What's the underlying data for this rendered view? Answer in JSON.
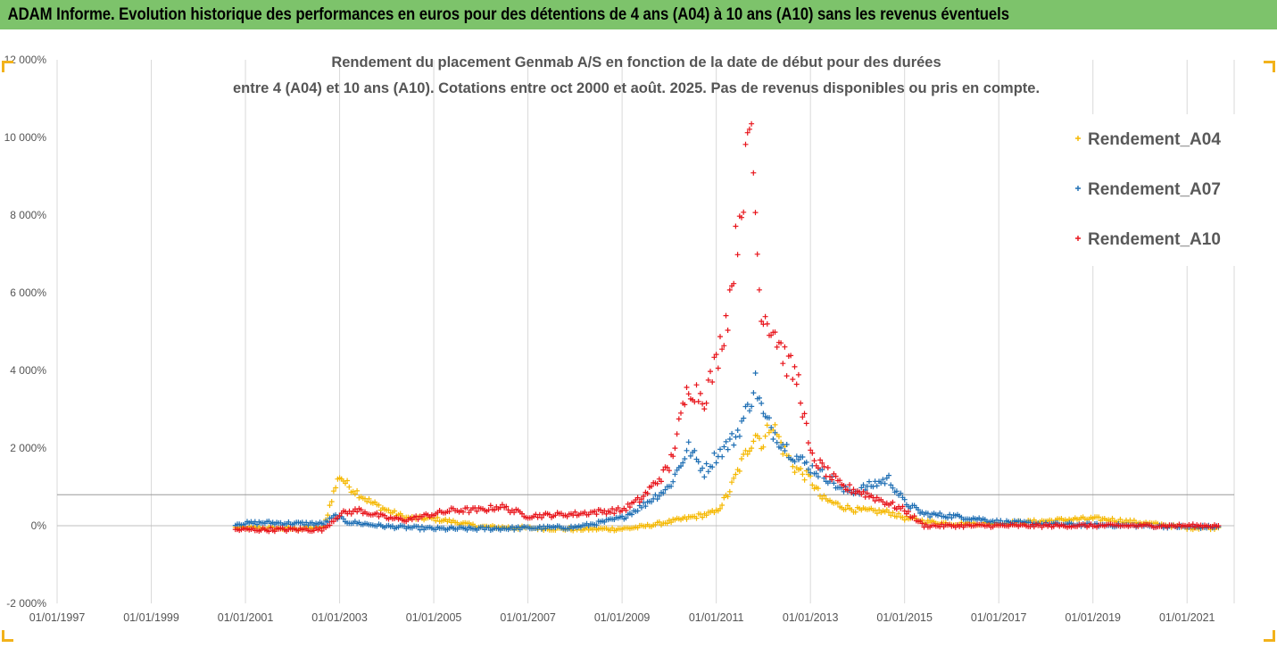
{
  "banner": {
    "text": "ADAM Informe. Evolution historique des performances en euros pour des détentions de 4 ans (A04) à 10 ans (A10) sans les revenus éventuels",
    "color": "#7dc36b"
  },
  "chart_data": {
    "type": "scatter",
    "title_lines": [
      "Rendement du placement Genmab A/S en fonction de la date de début pour des durées",
      "entre 4 (A04) et 10 ans (A10). Cotations entre oct 2000 et août. 2025. Pas de revenus disponibles ou pris en compte."
    ],
    "xlabel": "",
    "ylabel": "",
    "x_ticks": [
      "01/01/1997",
      "01/01/1999",
      "01/01/2001",
      "01/01/2003",
      "01/01/2005",
      "01/01/2007",
      "01/01/2009",
      "01/01/2011",
      "01/01/2013",
      "01/01/2015",
      "01/01/2017",
      "01/01/2019",
      "01/01/2021"
    ],
    "xlim": [
      "1997-01-01",
      "2022-01-01"
    ],
    "y_ticks": [
      "-2 000%",
      "0%",
      "2 000%",
      "4 000%",
      "6 000%",
      "8 000%",
      "10 000%",
      "12 000%"
    ],
    "ylim": [
      -2000,
      12000
    ],
    "reference_line": 800,
    "grid": "vertical",
    "legend_position": "top-right",
    "marker": "+",
    "series": [
      {
        "name": "Rendement_A04",
        "color": "#f5b800",
        "points": [
          [
            "2000-10-15",
            -50
          ],
          [
            "2001-06-01",
            -60
          ],
          [
            "2002-01-01",
            -80
          ],
          [
            "2002-09-01",
            -50
          ],
          [
            "2002-11-01",
            700
          ],
          [
            "2003-01-01",
            1300
          ],
          [
            "2003-03-01",
            1050
          ],
          [
            "2003-05-01",
            900
          ],
          [
            "2003-09-01",
            600
          ],
          [
            "2004-01-01",
            400
          ],
          [
            "2004-06-01",
            200
          ],
          [
            "2005-01-01",
            180
          ],
          [
            "2005-06-01",
            100
          ],
          [
            "2006-01-01",
            -30
          ],
          [
            "2007-01-01",
            -60
          ],
          [
            "2008-01-01",
            -90
          ],
          [
            "2009-01-01",
            -80
          ],
          [
            "2009-06-01",
            -30
          ],
          [
            "2010-01-01",
            100
          ],
          [
            "2010-06-01",
            200
          ],
          [
            "2011-01-01",
            350
          ],
          [
            "2011-04-01",
            800
          ],
          [
            "2011-07-01",
            1500
          ],
          [
            "2011-11-01",
            2400
          ],
          [
            "2012-01-01",
            2100
          ],
          [
            "2012-03-01",
            2700
          ],
          [
            "2012-06-01",
            2000
          ],
          [
            "2012-09-01",
            1500
          ],
          [
            "2013-01-01",
            1200
          ],
          [
            "2013-04-01",
            700
          ],
          [
            "2013-09-01",
            500
          ],
          [
            "2014-01-01",
            400
          ],
          [
            "2014-09-01",
            350
          ],
          [
            "2015-01-01",
            200
          ],
          [
            "2015-07-01",
            100
          ],
          [
            "2016-01-01",
            50
          ],
          [
            "2017-01-01",
            60
          ],
          [
            "2018-01-01",
            120
          ],
          [
            "2018-07-01",
            160
          ],
          [
            "2019-01-01",
            180
          ],
          [
            "2019-06-01",
            150
          ],
          [
            "2020-01-01",
            80
          ],
          [
            "2021-01-01",
            -50
          ],
          [
            "2021-09-01",
            -50
          ]
        ]
      },
      {
        "name": "Rendement_A07",
        "color": "#1f6fb4",
        "points": [
          [
            "2000-10-15",
            50
          ],
          [
            "2001-06-01",
            80
          ],
          [
            "2002-01-01",
            60
          ],
          [
            "2002-09-01",
            50
          ],
          [
            "2002-12-01",
            250
          ],
          [
            "2003-03-01",
            100
          ],
          [
            "2004-01-01",
            -20
          ],
          [
            "2005-01-01",
            -80
          ],
          [
            "2006-01-01",
            -80
          ],
          [
            "2007-01-01",
            -60
          ],
          [
            "2008-01-01",
            -40
          ],
          [
            "2008-06-01",
            50
          ],
          [
            "2009-01-01",
            200
          ],
          [
            "2009-06-01",
            500
          ],
          [
            "2010-01-01",
            1000
          ],
          [
            "2010-06-01",
            2000
          ],
          [
            "2010-10-01",
            1400
          ],
          [
            "2011-01-01",
            1800
          ],
          [
            "2011-06-01",
            2300
          ],
          [
            "2011-09-01",
            3000
          ],
          [
            "2011-11-01",
            3700
          ],
          [
            "2012-01-01",
            2800
          ],
          [
            "2012-06-01",
            2100
          ],
          [
            "2012-09-01",
            1800
          ],
          [
            "2013-01-01",
            1500
          ],
          [
            "2013-06-01",
            1200
          ],
          [
            "2013-09-01",
            900
          ],
          [
            "2014-01-01",
            900
          ],
          [
            "2014-06-01",
            1100
          ],
          [
            "2014-09-01",
            1200
          ],
          [
            "2015-01-01",
            600
          ],
          [
            "2015-06-01",
            300
          ],
          [
            "2016-01-01",
            250
          ],
          [
            "2016-06-01",
            200
          ],
          [
            "2017-01-01",
            100
          ],
          [
            "2018-01-01",
            40
          ],
          [
            "2019-01-01",
            20
          ],
          [
            "2020-01-01",
            0
          ],
          [
            "2021-01-01",
            -30
          ],
          [
            "2021-09-01",
            -30
          ]
        ]
      },
      {
        "name": "Rendement_A10",
        "color": "#e8141b",
        "points": [
          [
            "2000-10-15",
            -100
          ],
          [
            "2001-06-01",
            -100
          ],
          [
            "2002-06-01",
            -100
          ],
          [
            "2002-09-01",
            -90
          ],
          [
            "2003-01-01",
            300
          ],
          [
            "2003-06-01",
            400
          ],
          [
            "2004-01-01",
            200
          ],
          [
            "2004-06-01",
            150
          ],
          [
            "2005-01-01",
            300
          ],
          [
            "2005-06-01",
            400
          ],
          [
            "2006-01-01",
            400
          ],
          [
            "2006-06-01",
            500
          ],
          [
            "2007-01-01",
            250
          ],
          [
            "2008-01-01",
            300
          ],
          [
            "2008-06-01",
            350
          ],
          [
            "2009-01-01",
            400
          ],
          [
            "2009-06-01",
            700
          ],
          [
            "2010-01-01",
            1500
          ],
          [
            "2010-06-01",
            3600
          ],
          [
            "2010-10-01",
            3300
          ],
          [
            "2011-01-01",
            4200
          ],
          [
            "2011-04-01",
            5500
          ],
          [
            "2011-07-01",
            8000
          ],
          [
            "2011-10-01",
            10300
          ],
          [
            "2011-12-01",
            6000
          ],
          [
            "2012-01-01",
            5500
          ],
          [
            "2012-04-01",
            5000
          ],
          [
            "2012-07-01",
            4200
          ],
          [
            "2012-10-01",
            3700
          ],
          [
            "2013-01-01",
            1800
          ],
          [
            "2013-06-01",
            1300
          ],
          [
            "2013-09-01",
            1000
          ],
          [
            "2014-01-01",
            900
          ],
          [
            "2014-06-01",
            700
          ],
          [
            "2015-01-01",
            400
          ],
          [
            "2015-06-01",
            0
          ],
          [
            "2016-01-01",
            0
          ],
          [
            "2018-01-01",
            0
          ],
          [
            "2020-01-01",
            0
          ],
          [
            "2021-09-01",
            0
          ]
        ]
      }
    ]
  }
}
